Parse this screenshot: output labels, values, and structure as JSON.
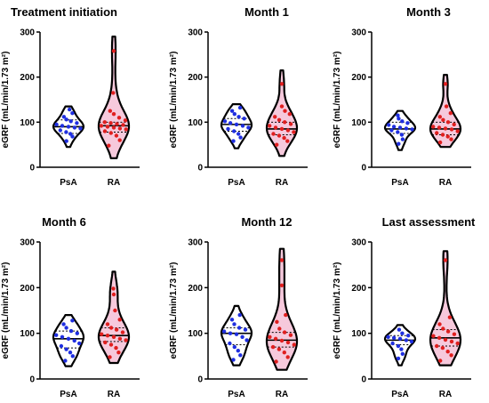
{
  "figure": {
    "colors": {
      "PsA": "#1f2fe0",
      "RA": "#e01f1f",
      "outline": "#000000",
      "ra_fill": "#f6c9dc"
    }
  },
  "chart_data": [
    {
      "type": "violin",
      "title": "Treatment initiation",
      "ylabel": "eGRF (mL/min/1.73 m²)",
      "ylim": [
        0,
        300
      ],
      "yticks": [
        0,
        100,
        200,
        300
      ],
      "categories": [
        "PsA",
        "RA"
      ],
      "series": [
        {
          "name": "PsA",
          "range": [
            45,
            135
          ],
          "median": 90,
          "quartiles": [
            75,
            105
          ],
          "values": [
            58,
            68,
            74,
            78,
            82,
            86,
            88,
            90,
            92,
            95,
            98,
            102,
            106,
            112,
            120,
            128
          ]
        },
        {
          "name": "RA",
          "range": [
            20,
            290
          ],
          "median": 92,
          "quartiles": [
            78,
            100
          ],
          "values": [
            48,
            60,
            70,
            76,
            80,
            84,
            86,
            88,
            90,
            92,
            94,
            96,
            98,
            100,
            104,
            110,
            118,
            125,
            165,
            258
          ]
        }
      ]
    },
    {
      "type": "violin",
      "title": "Month 1",
      "ylabel": "eGRF (mL/min/1.73 m²)",
      "ylim": [
        0,
        300
      ],
      "yticks": [
        0,
        100,
        200,
        300
      ],
      "categories": [
        "PsA",
        "RA"
      ],
      "series": [
        {
          "name": "PsA",
          "range": [
            42,
            140
          ],
          "median": 95,
          "quartiles": [
            80,
            108
          ],
          "values": [
            58,
            66,
            74,
            80,
            85,
            88,
            92,
            95,
            98,
            102,
            108,
            112,
            118,
            125,
            132
          ]
        },
        {
          "name": "RA",
          "range": [
            25,
            215
          ],
          "median": 85,
          "quartiles": [
            72,
            100
          ],
          "values": [
            50,
            58,
            65,
            70,
            74,
            78,
            82,
            85,
            88,
            92,
            96,
            100,
            105,
            112,
            118,
            125,
            135,
            185
          ]
        }
      ]
    },
    {
      "type": "violin",
      "title": "Month 3",
      "ylabel": "eGRF (mL/min/1.73 m²)",
      "ylim": [
        0,
        300
      ],
      "yticks": [
        0,
        100,
        200,
        300
      ],
      "categories": [
        "PsA",
        "RA"
      ],
      "series": [
        {
          "name": "PsA",
          "range": [
            38,
            125
          ],
          "median": 85,
          "quartiles": [
            75,
            100
          ],
          "values": [
            52,
            62,
            72,
            78,
            82,
            84,
            86,
            88,
            90,
            94,
            98,
            102,
            108,
            115
          ]
        },
        {
          "name": "RA",
          "range": [
            45,
            205
          ],
          "median": 85,
          "quartiles": [
            72,
            100
          ],
          "values": [
            55,
            62,
            68,
            72,
            76,
            80,
            84,
            86,
            88,
            90,
            95,
            100,
            105,
            112,
            120,
            135,
            185
          ]
        }
      ]
    },
    {
      "type": "violin",
      "title": "Month 6",
      "ylabel": "eGRF (mL/min/1.73 m²)",
      "ylim": [
        0,
        300
      ],
      "yticks": [
        0,
        100,
        200,
        300
      ],
      "categories": [
        "PsA",
        "RA"
      ],
      "series": [
        {
          "name": "PsA",
          "range": [
            28,
            140
          ],
          "median": 88,
          "quartiles": [
            68,
            105
          ],
          "values": [
            40,
            50,
            58,
            65,
            72,
            78,
            84,
            88,
            92,
            96,
            100,
            105,
            112,
            120,
            128
          ]
        },
        {
          "name": "RA",
          "range": [
            35,
            235
          ],
          "median": 95,
          "quartiles": [
            82,
            112
          ],
          "values": [
            48,
            58,
            68,
            75,
            80,
            85,
            88,
            92,
            95,
            98,
            102,
            108,
            112,
            120,
            130,
            150,
            185,
            198
          ]
        }
      ]
    },
    {
      "type": "violin",
      "title": "Month 12",
      "ylabel": "eGRF (mL/min/1.73 m²)",
      "ylim": [
        0,
        300
      ],
      "yticks": [
        0,
        100,
        200,
        300
      ],
      "categories": [
        "PsA",
        "RA"
      ],
      "series": [
        {
          "name": "PsA",
          "range": [
            30,
            160
          ],
          "median": 100,
          "quartiles": [
            75,
            112
          ],
          "values": [
            42,
            52,
            62,
            70,
            78,
            85,
            92,
            98,
            100,
            104,
            108,
            112,
            120,
            130,
            140
          ]
        },
        {
          "name": "RA",
          "range": [
            20,
            285
          ],
          "median": 85,
          "quartiles": [
            70,
            102
          ],
          "values": [
            38,
            48,
            58,
            65,
            70,
            75,
            80,
            84,
            88,
            92,
            96,
            102,
            110,
            125,
            140,
            205,
            260
          ]
        }
      ]
    },
    {
      "type": "violin",
      "title": "Last assessment",
      "ylabel": "eGRF (mL/min/1.73 m²)",
      "ylim": [
        0,
        300
      ],
      "yticks": [
        0,
        100,
        200,
        300
      ],
      "categories": [
        "PsA",
        "RA"
      ],
      "series": [
        {
          "name": "PsA",
          "range": [
            30,
            118
          ],
          "median": 85,
          "quartiles": [
            75,
            95
          ],
          "values": [
            45,
            55,
            65,
            72,
            78,
            82,
            85,
            88,
            90,
            92,
            95,
            100,
            108
          ]
        },
        {
          "name": "RA",
          "range": [
            30,
            280
          ],
          "median": 90,
          "quartiles": [
            72,
            108
          ],
          "values": [
            40,
            52,
            60,
            68,
            72,
            78,
            82,
            86,
            90,
            94,
            98,
            104,
            110,
            120,
            135,
            260
          ]
        }
      ]
    }
  ]
}
